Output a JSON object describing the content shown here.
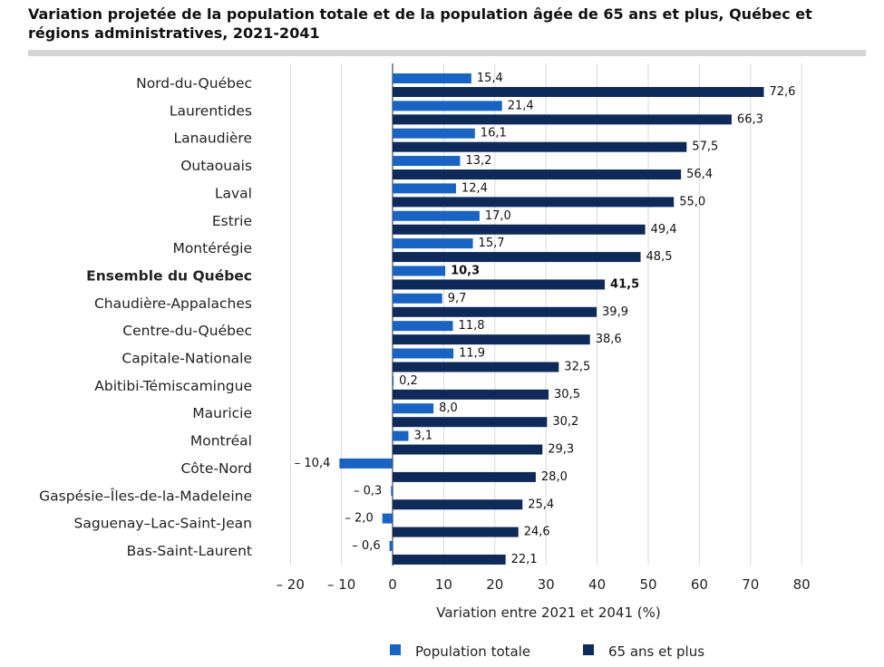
{
  "title": "Variation projetée de la population totale et de la population âgée de 65 ans et plus, Québec et régions administratives, 2021-2041",
  "colors": {
    "population_totale": "#1763c6",
    "ans_65_plus": "#0d2a5b",
    "grid": "#d9d9d9",
    "title_rule": "#d4d4d4"
  },
  "chart_data": {
    "type": "bar",
    "orientation": "horizontal",
    "title": "Variation projetée de la population totale et de la population âgée de 65 ans et plus, Québec et régions administratives, 2021-2041",
    "xlabel": "Variation entre 2021 et 2041 (%)",
    "ylabel": "",
    "xlim": [
      -20,
      80
    ],
    "xticks": [
      -20,
      -10,
      0,
      10,
      20,
      30,
      40,
      50,
      60,
      70,
      80
    ],
    "xtick_labels": [
      "– 20",
      "– 10",
      "0",
      "10",
      "20",
      "30",
      "40",
      "50",
      "60",
      "70",
      "80"
    ],
    "grid": "vertical",
    "legend_position": "bottom",
    "categories": [
      "Nord-du-Québec",
      "Laurentides",
      "Lanaudière",
      "Outaouais",
      "Laval",
      "Estrie",
      "Montérégie",
      "Ensemble du Québec",
      "Chaudière-Appalaches",
      "Centre-du-Québec",
      "Capitale-Nationale",
      "Abitibi-Témiscamingue",
      "Mauricie",
      "Montréal",
      "Côte-Nord",
      "Gaspésie–Îles-de-la-Madeleine",
      "Saguenay–Lac-Saint-Jean",
      "Bas-Saint-Laurent"
    ],
    "bold_category": "Ensemble du Québec",
    "series": [
      {
        "name": "Population totale",
        "values": [
          15.4,
          21.4,
          16.1,
          13.2,
          12.4,
          17.0,
          15.7,
          10.3,
          9.7,
          11.8,
          11.9,
          0.2,
          8.0,
          3.1,
          -10.4,
          -0.3,
          -2.0,
          -0.6
        ],
        "labels": [
          "15,4",
          "21,4",
          "16,1",
          "13,2",
          "12,4",
          "17,0",
          "15,7",
          "10,3",
          "9,7",
          "11,8",
          "11,9",
          "0,2",
          "8,0",
          "3,1",
          "– 10,4",
          "– 0,3",
          "– 2,0",
          "– 0,6"
        ]
      },
      {
        "name": "65 ans et plus",
        "values": [
          72.6,
          66.3,
          57.5,
          56.4,
          55.0,
          49.4,
          48.5,
          41.5,
          39.9,
          38.6,
          32.5,
          30.5,
          30.2,
          29.3,
          28.0,
          25.4,
          24.6,
          22.1
        ],
        "labels": [
          "72,6",
          "66,3",
          "57,5",
          "56,4",
          "55,0",
          "49,4",
          "48,5",
          "41,5",
          "39,9",
          "38,6",
          "32,5",
          "30,5",
          "30,2",
          "29,3",
          "28,0",
          "25,4",
          "24,6",
          "22,1"
        ]
      }
    ]
  }
}
